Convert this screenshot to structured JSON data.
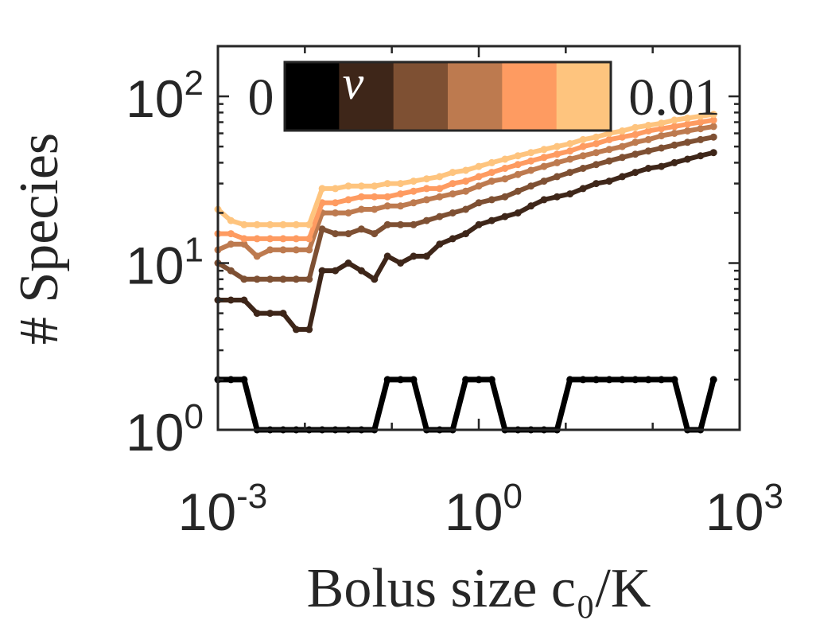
{
  "chart_data": {
    "type": "line",
    "title": "",
    "xlabel": "Bolus size c₀/K",
    "ylabel": "# Species",
    "xscale": "log",
    "yscale": "log",
    "xlim": [
      0.001,
      1000
    ],
    "ylim": [
      1,
      200
    ],
    "x_ticks": [
      {
        "value": 0.001,
        "base": "10",
        "exp": "-3"
      },
      {
        "value": 1,
        "base": "10",
        "exp": "0"
      },
      {
        "value": 1000,
        "base": "10",
        "exp": "3"
      }
    ],
    "y_ticks": [
      {
        "value": 1,
        "base": "10",
        "exp": "0"
      },
      {
        "value": 10,
        "base": "10",
        "exp": "1"
      },
      {
        "value": 100,
        "base": "10",
        "exp": "2"
      }
    ],
    "grid": false,
    "colorbar": {
      "label": "ν",
      "min_label": "0",
      "max_label": "0.01",
      "colors": [
        "#000000",
        "#3e2619",
        "#7e5033",
        "#bd7a4f",
        "#fe9b61",
        "#fec47e"
      ],
      "placement": "top"
    },
    "x": [
      0.001,
      0.00141,
      0.002,
      0.00282,
      0.00398,
      0.00562,
      0.00794,
      0.0112,
      0.0158,
      0.0224,
      0.0316,
      0.0447,
      0.0631,
      0.0891,
      0.126,
      0.178,
      0.251,
      0.355,
      0.501,
      0.708,
      1.0,
      1.41,
      2.0,
      2.82,
      3.98,
      5.62,
      7.94,
      11.2,
      15.8,
      22.4,
      31.6,
      44.7,
      63.1,
      89.1,
      126,
      178,
      251,
      355,
      501
    ],
    "series": [
      {
        "color": "#000000",
        "width": 7,
        "values": [
          2,
          2,
          2,
          1,
          1,
          1,
          1,
          1,
          1,
          1,
          1,
          1,
          1,
          2,
          2,
          2,
          1,
          1,
          1,
          2,
          2,
          2,
          1,
          1,
          1,
          1,
          1,
          2,
          2,
          2,
          2,
          2,
          2,
          2,
          2,
          2,
          1,
          1,
          2
        ]
      },
      {
        "color": "#3e2619",
        "width": 6,
        "values": [
          6.0,
          6.0,
          6.0,
          5.0,
          5.0,
          5.0,
          4.0,
          4.0,
          9.0,
          9.0,
          10.0,
          9.0,
          8.0,
          11.0,
          10.0,
          11.0,
          11.0,
          13.0,
          14.0,
          15.0,
          17.0,
          18.0,
          19.0,
          20.0,
          22.0,
          24.0,
          25.0,
          26.0,
          28.0,
          30.0,
          31.0,
          33.0,
          35.0,
          37.0,
          38.0,
          40.0,
          42.0,
          44.0,
          46.0
        ]
      },
      {
        "color": "#7e5033",
        "width": 6,
        "values": [
          10.0,
          9.0,
          8.0,
          8.0,
          8.0,
          8.0,
          8.0,
          8.0,
          16.0,
          15.0,
          15.0,
          16.0,
          15.0,
          17.0,
          17.0,
          17.0,
          18.0,
          19.0,
          20.0,
          21.0,
          23.0,
          24.0,
          25.0,
          27.0,
          29.0,
          31.0,
          33.0,
          35.0,
          37.0,
          39.0,
          41.0,
          43.0,
          45.0,
          47.0,
          49.0,
          51.0,
          53.0,
          55.0,
          57.0
        ]
      },
      {
        "color": "#bd7a4f",
        "width": 6,
        "values": [
          12.0,
          13.0,
          13.0,
          11.0,
          12.0,
          12.0,
          12.0,
          12.0,
          20.0,
          20.0,
          20.0,
          21.0,
          21.0,
          22.0,
          22.0,
          23.0,
          24.0,
          25.0,
          26.0,
          27.0,
          29.0,
          31.0,
          32.0,
          34.0,
          36.0,
          38.0,
          40.0,
          42.0,
          44.0,
          46.0,
          48.0,
          50.0,
          53.0,
          55.0,
          58.0,
          60.0,
          62.0,
          64.0,
          66.0
        ]
      },
      {
        "color": "#fe9b61",
        "width": 6,
        "values": [
          15.0,
          15.0,
          14.0,
          14.0,
          14.0,
          14.0,
          14.0,
          14.0,
          23.0,
          23.0,
          24.0,
          25.0,
          25.0,
          25.0,
          26.0,
          27.0,
          28.0,
          28.0,
          30.0,
          31.0,
          33.0,
          35.0,
          37.0,
          39.0,
          41.0,
          43.0,
          45.0,
          47.0,
          50.0,
          52.0,
          55.0,
          57.0,
          59.0,
          62.0,
          64.0,
          66.0,
          68.0,
          70.0,
          72.0
        ]
      },
      {
        "color": "#fec47e",
        "width": 6,
        "values": [
          21.0,
          18.0,
          17.0,
          17.0,
          17.0,
          17.0,
          17.0,
          17.0,
          28.0,
          28.0,
          29.0,
          29.0,
          29.0,
          30.0,
          30.0,
          31.0,
          32.0,
          33.0,
          35.0,
          36.0,
          38.0,
          40.0,
          42.0,
          44.0,
          46.0,
          48.0,
          50.0,
          52.0,
          55.0,
          57.0,
          60.0,
          62.0,
          65.0,
          67.0,
          69.0,
          72.0,
          74.0,
          76.0,
          78.0
        ]
      }
    ]
  }
}
